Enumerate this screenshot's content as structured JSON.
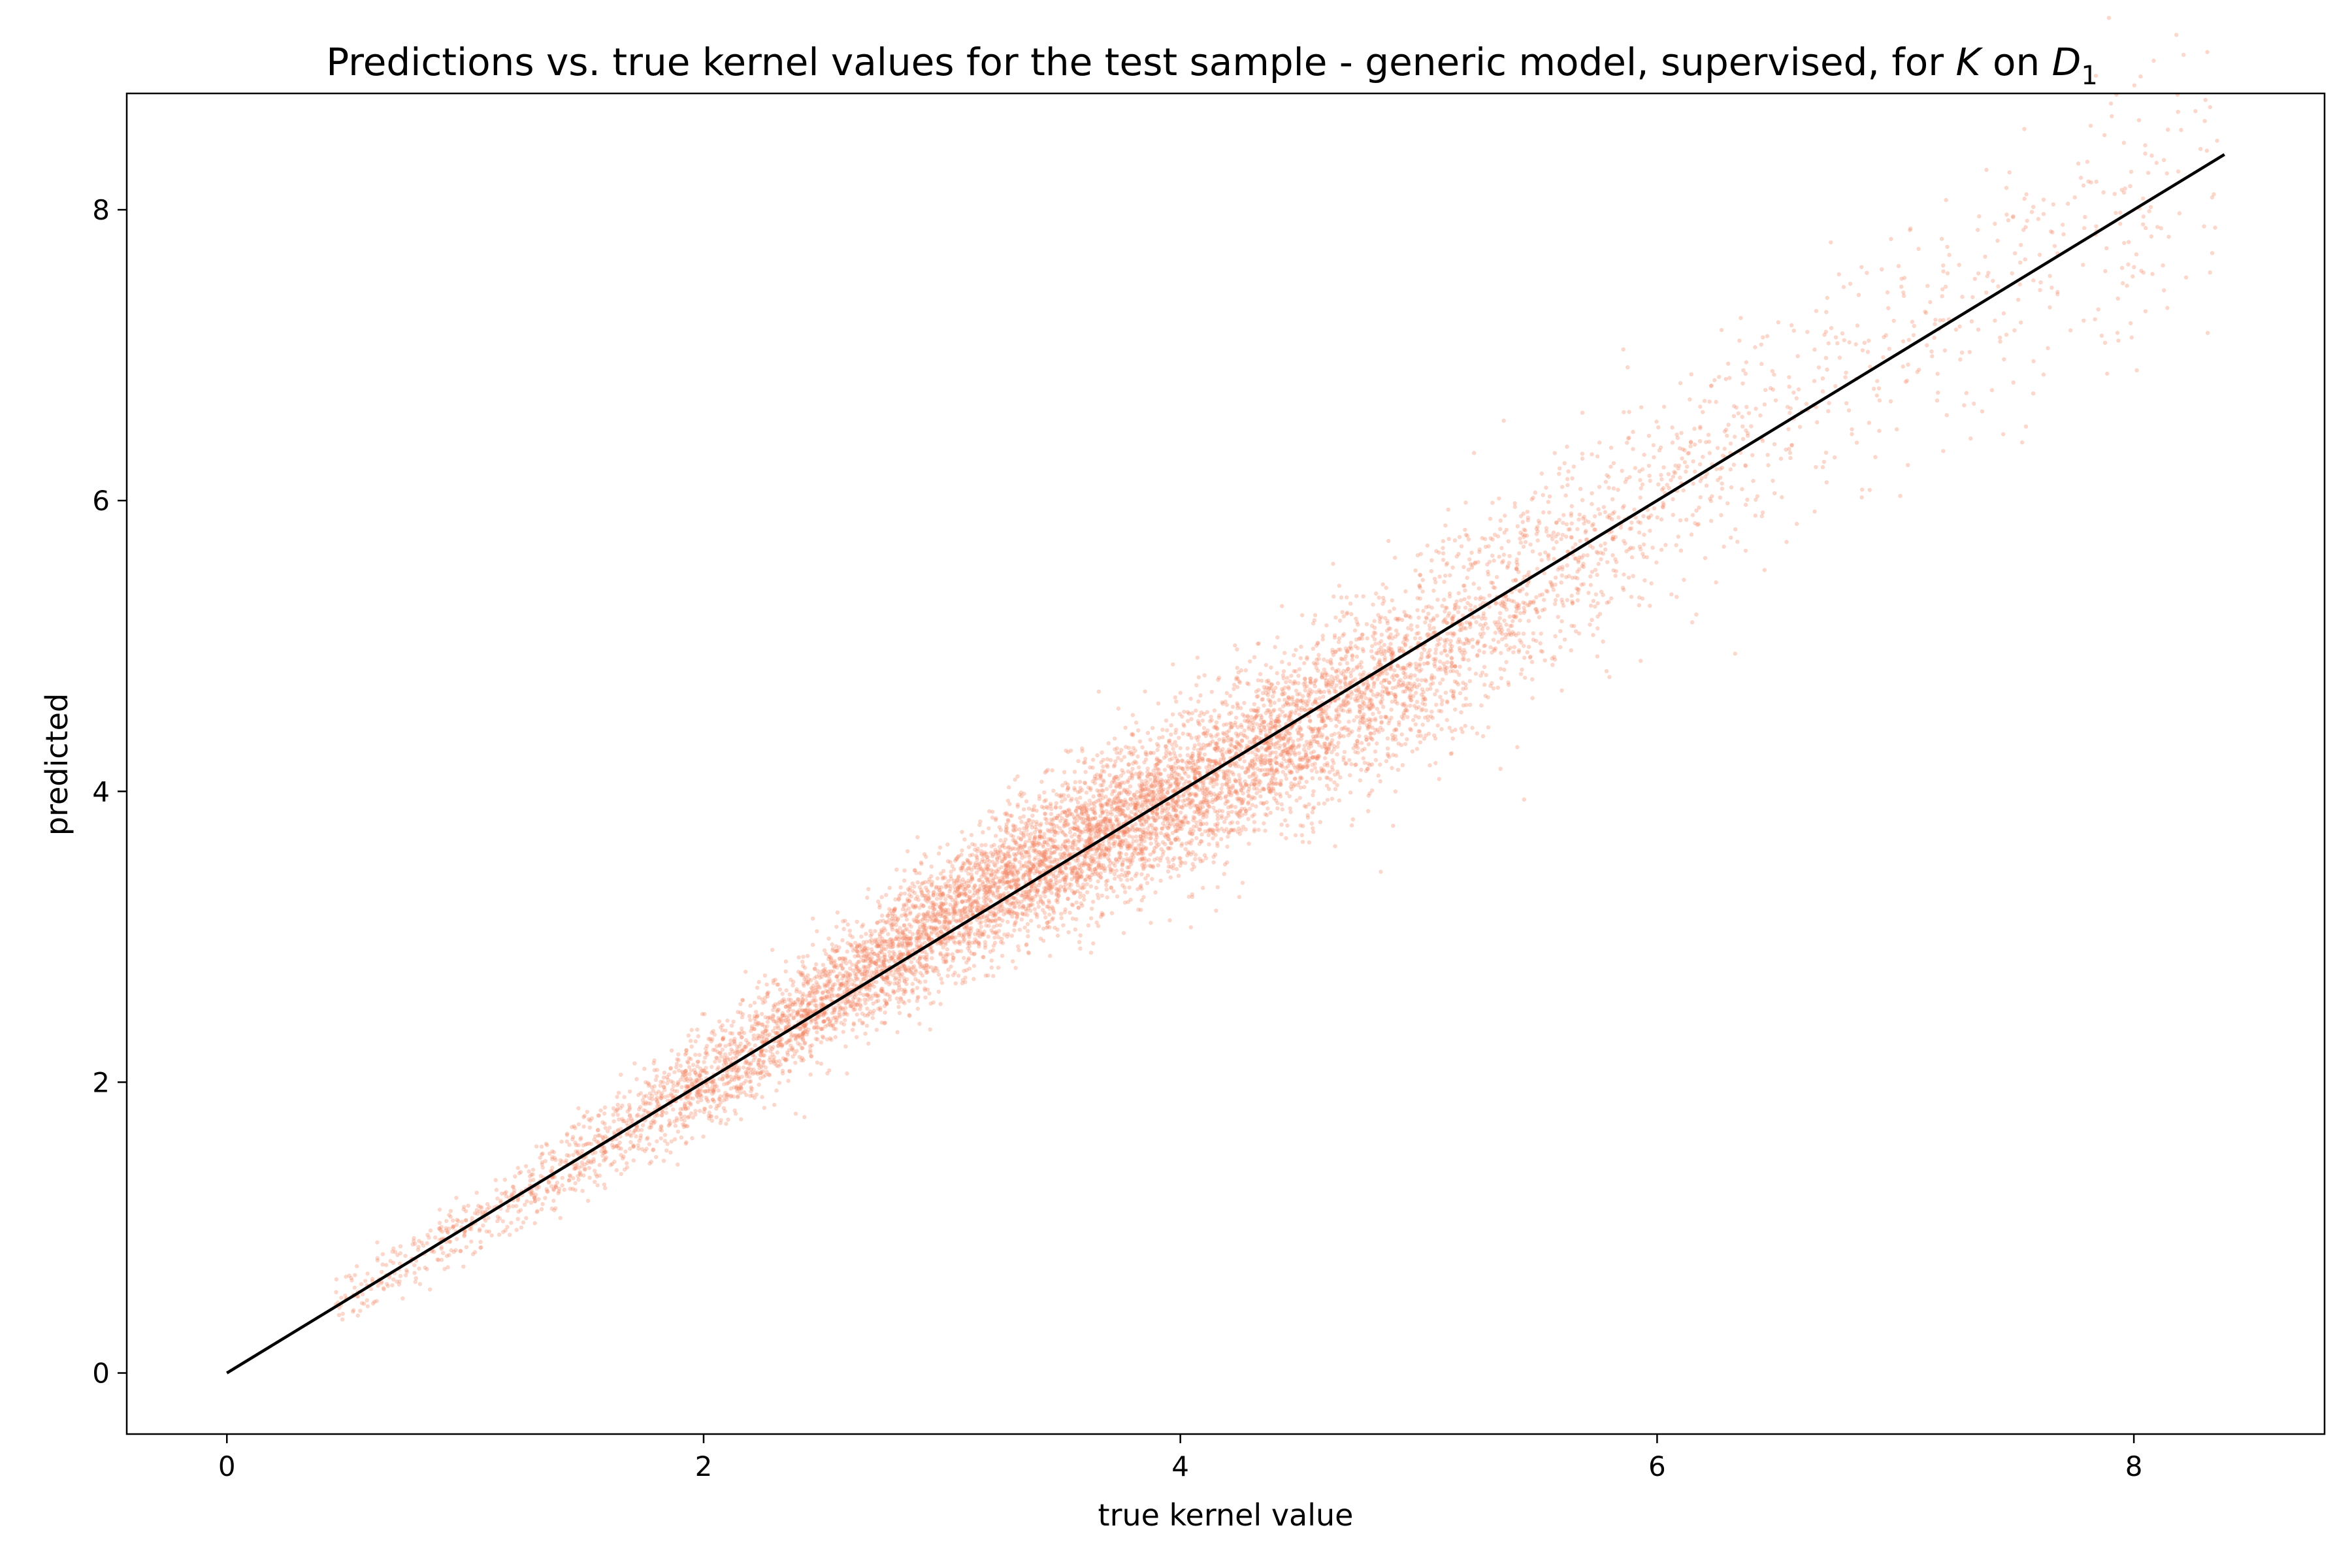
{
  "chart_data": {
    "type": "scatter",
    "title_parts": {
      "prefix": "Predictions vs. true kernel values for the test sample - generic model, supervised, for ",
      "k": "K",
      "on": " on ",
      "d": "D",
      "d_sub": "1"
    },
    "xlabel": "true kernel value",
    "ylabel": "predicted",
    "xlim": [
      -0.42,
      8.8
    ],
    "ylim": [
      -0.42,
      8.8
    ],
    "xticks": [
      0,
      2,
      4,
      6,
      8
    ],
    "yticks": [
      0,
      2,
      4,
      6,
      8
    ],
    "grid": false,
    "legend": "none",
    "point_color": "#f4845f",
    "point_opacity": 0.32,
    "line_color": "#000000",
    "series": [
      {
        "kind": "points",
        "distribution": {
          "count": 9000,
          "x_center": 3.6,
          "x_spread": 1.15,
          "x_min": 0.45,
          "x_max": 8.35,
          "relation": "y ≈ x with noise sd ≈ 0.05 + 0.055·x",
          "bend": "predictions slightly above the diagonal for x ≈ 2.5–3.8, slightly below for x ≈ 4–5.5"
        }
      },
      {
        "kind": "line",
        "x": [
          0,
          8.38
        ],
        "y": [
          0,
          8.38
        ]
      }
    ]
  }
}
